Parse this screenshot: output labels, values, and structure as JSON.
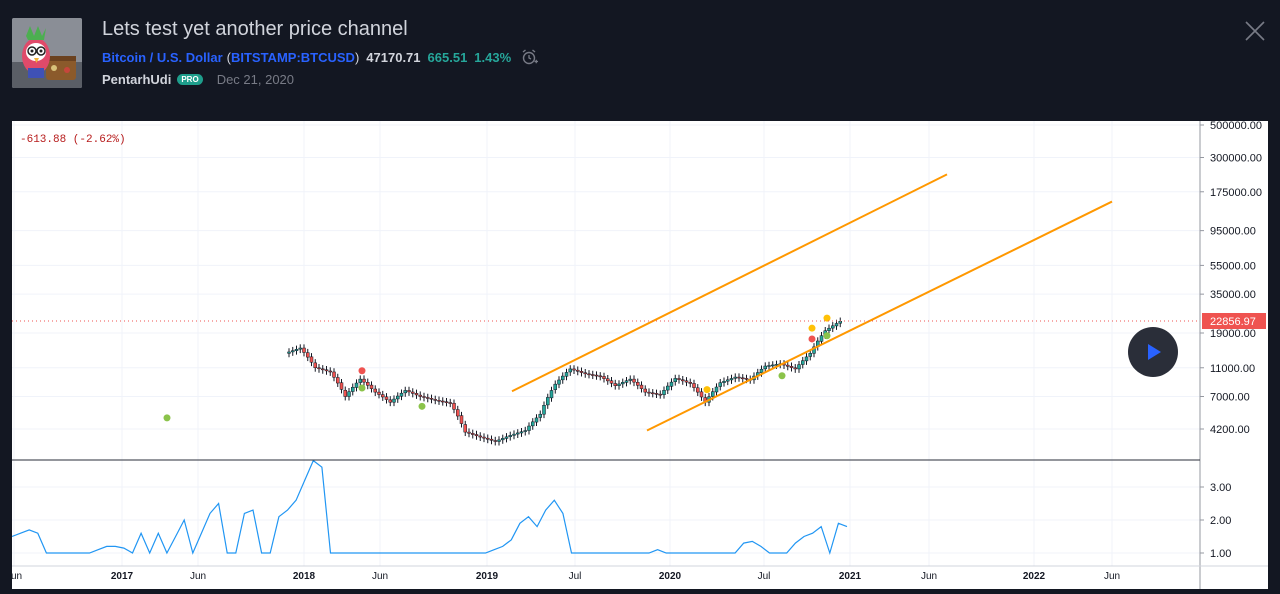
{
  "header": {
    "title": "Lets test yet another price channel",
    "symbol_name": "Bitcoin / U.S. Dollar",
    "symbol_ticker": "BITSTAMP:BTCUSD",
    "paren_open": "(",
    "paren_close": ")",
    "price": "47170.71",
    "change": "665.51",
    "change_pct": "1.43%",
    "author": "PentarhUdi",
    "badge": "PRO",
    "date": "Dec 21, 2020"
  },
  "icons": {
    "alert": "alarm-clock-plus-icon",
    "close": "close-icon",
    "play": "play-icon",
    "avatar": "avatar-image"
  },
  "colors": {
    "background": "#131722",
    "accent_blue": "#2962ff",
    "up": "#26a69a",
    "down": "#ef5350",
    "channel": "#ff9800",
    "indicator": "#2196f3",
    "price_label": "#ef5350"
  },
  "chart": {
    "change_label": "-613.88 (-2.62%)",
    "last_price_label": "22856.97",
    "price_axis_ticks": [
      "500000.00",
      "300000.00",
      "175000.00",
      "95000.00",
      "55000.00",
      "35000.00",
      "19000.00",
      "11000.00",
      "7000.00",
      "4200.00"
    ],
    "indicator_axis_ticks": [
      "3.00",
      "2.00",
      "1.00"
    ],
    "time_axis_ticks": [
      "Jun",
      "2017",
      "Jun",
      "2018",
      "Jun",
      "2019",
      "Jul",
      "2020",
      "Jul",
      "2021",
      "Jun",
      "2022",
      "Jun"
    ]
  },
  "chart_data": {
    "type": "candlestick",
    "symbol": "BITSTAMP:BTCUSD",
    "log_scale": true,
    "price_axis_ticks": [
      500000,
      300000,
      175000,
      95000,
      55000,
      35000,
      19000,
      11000,
      7000,
      4200
    ],
    "indicator_axis_ticks": [
      3,
      2,
      1
    ],
    "x_ticks": [
      "Jun",
      "2017",
      "Jun",
      "2018",
      "Jun",
      "2019",
      "Jul",
      "2020",
      "Jul",
      "2021",
      "Jun",
      "2022",
      "Jun"
    ],
    "weekly_closes": [
      [
        "2017-12",
        15000
      ],
      [
        "2018-01",
        11000
      ],
      [
        "2018-02",
        10300
      ],
      [
        "2018-03",
        7000
      ],
      [
        "2018-04",
        9200
      ],
      [
        "2018-05",
        7500
      ],
      [
        "2018-06",
        6400
      ],
      [
        "2018-07",
        7700
      ],
      [
        "2018-08",
        7000
      ],
      [
        "2018-09",
        6600
      ],
      [
        "2018-10",
        6300
      ],
      [
        "2018-11",
        4000
      ],
      [
        "2018-12",
        3700
      ],
      [
        "2019-01",
        3450
      ],
      [
        "2019-02",
        3800
      ],
      [
        "2019-03",
        4100
      ],
      [
        "2019-04",
        5300
      ],
      [
        "2019-05",
        8500
      ],
      [
        "2019-06",
        10800
      ],
      [
        "2019-07",
        10000
      ],
      [
        "2019-08",
        9600
      ],
      [
        "2019-09",
        8300
      ],
      [
        "2019-10",
        9200
      ],
      [
        "2019-11",
        7500
      ],
      [
        "2019-12",
        7200
      ],
      [
        "2020-01",
        9300
      ],
      [
        "2020-02",
        8600
      ],
      [
        "2020-03",
        6400
      ],
      [
        "2020-04",
        8700
      ],
      [
        "2020-05",
        9500
      ],
      [
        "2020-06",
        9100
      ],
      [
        "2020-07",
        11300
      ],
      [
        "2020-08",
        11700
      ],
      [
        "2020-09",
        10800
      ],
      [
        "2020-10",
        13800
      ],
      [
        "2020-11",
        19700
      ],
      [
        "2020-12",
        22857
      ]
    ],
    "channel_lines": [
      {
        "name": "upper",
        "from": [
          "2019-03",
          7600
        ],
        "to": [
          "2021-08",
          230000
        ]
      },
      {
        "name": "lower",
        "from": [
          "2019-12",
          4100
        ],
        "to": [
          "2022-07",
          150000
        ]
      }
    ],
    "indicator_series": [
      1.5,
      1.7,
      1.6,
      1.2,
      1.0,
      1.0,
      1.0,
      1.0,
      1.2,
      1.3,
      1.2,
      1.0,
      1.0,
      1.0,
      1.0,
      1.0,
      1.2,
      1.5,
      2.3,
      2.6,
      1.8,
      1.0,
      1.0,
      1.0,
      1.0,
      1.0,
      1.0,
      1.0,
      1.1,
      1.0,
      1.0,
      1.0,
      1.1,
      1.3,
      1.6,
      1.75,
      1.9
    ]
  }
}
